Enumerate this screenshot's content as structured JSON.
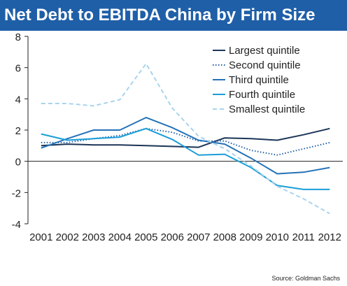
{
  "chart_data": {
    "type": "line",
    "title": "Net Debt to EBITDA China by Firm Size",
    "xlabel": "",
    "ylabel": "",
    "x": [
      "2001",
      "2002",
      "2003",
      "2004",
      "2005",
      "2006",
      "2007",
      "2008",
      "2009",
      "2010",
      "2011",
      "2012"
    ],
    "ylim": [
      -4,
      8
    ],
    "yticks": [
      8,
      6,
      4,
      2,
      0,
      -2,
      -4
    ],
    "grid": false,
    "legend_position": "top-right",
    "series": [
      {
        "name": "Largest quintile",
        "color": "#1c3557",
        "dash": "solid",
        "values": [
          1.0,
          1.1,
          1.05,
          1.05,
          1.0,
          0.95,
          0.9,
          1.5,
          1.45,
          1.35,
          1.7,
          2.1
        ]
      },
      {
        "name": "Second quintile",
        "color": "#1f5fa8",
        "dash": "dotted",
        "values": [
          1.2,
          1.2,
          1.45,
          1.65,
          2.1,
          1.85,
          1.3,
          1.3,
          0.7,
          0.4,
          0.8,
          1.2
        ]
      },
      {
        "name": "Third quintile",
        "color": "#2572b8",
        "dash": "solid",
        "values": [
          0.85,
          1.45,
          2.0,
          2.0,
          2.8,
          2.15,
          1.35,
          1.1,
          0.2,
          -0.8,
          -0.7,
          -0.4
        ]
      },
      {
        "name": "Fourth quintile",
        "color": "#1a9ed8",
        "dash": "solid",
        "values": [
          1.75,
          1.35,
          1.45,
          1.55,
          2.1,
          1.4,
          0.4,
          0.45,
          -0.4,
          -1.55,
          -1.8,
          -1.8
        ]
      },
      {
        "name": "Smallest quintile",
        "color": "#a9d4ee",
        "dash": "dashed",
        "values": [
          3.7,
          3.7,
          3.55,
          3.95,
          6.25,
          3.4,
          1.6,
          0.8,
          -0.3,
          -1.6,
          -2.4,
          -3.35
        ]
      }
    ]
  },
  "source": "Source: Goldman Sachs"
}
